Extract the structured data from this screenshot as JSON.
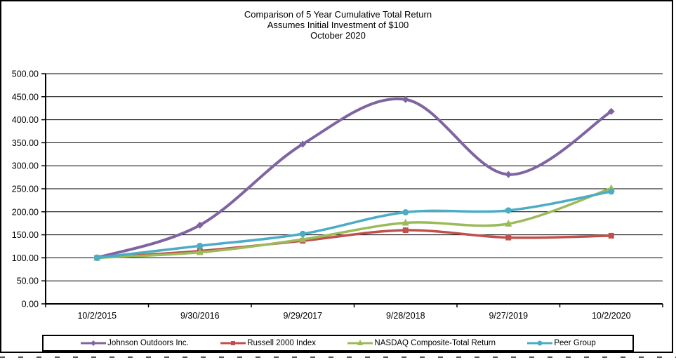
{
  "chart": {
    "title_lines": {
      "line1": "Comparison of 5 Year Cumulative Total Return",
      "line2": "Assumes Initial Investment of $100",
      "line3": "October 2020"
    }
  },
  "chart_data": {
    "type": "line",
    "title": "Comparison of 5 Year Cumulative Total Return",
    "subtitle": "Assumes Initial Investment of $100",
    "period_label": "October 2020",
    "categories": [
      "10/2/2015",
      "9/30/2016",
      "9/29/2017",
      "9/28/2018",
      "9/27/2019",
      "10/2/2020"
    ],
    "series": [
      {
        "name": "Johnson Outdoors Inc.",
        "color": "#8064A2",
        "marker": "diamond",
        "values": [
          100,
          171,
          347,
          444,
          281,
          418
        ]
      },
      {
        "name": "Russell 2000 Index",
        "color": "#C0504D",
        "marker": "square",
        "values": [
          100,
          115,
          137,
          160,
          144,
          148
        ]
      },
      {
        "name": "NASDAQ Composite-Total Return",
        "color": "#9BBB59",
        "marker": "triangle",
        "values": [
          100,
          112,
          140,
          176,
          174,
          251
        ]
      },
      {
        "name": "Peer Group",
        "color": "#4BACC6",
        "marker": "circle",
        "values": [
          100,
          126,
          152,
          199,
          203,
          244
        ]
      }
    ],
    "ylim": [
      0,
      500
    ],
    "ytick_step": 50,
    "ytick_labels": [
      "0.00",
      "50.00",
      "100.00",
      "150.00",
      "200.00",
      "250.00",
      "300.00",
      "350.00",
      "400.00",
      "450.00",
      "500.00"
    ],
    "grid": true,
    "gridline_color": "#000000",
    "axis_color": "#000000",
    "legend_position": "bottom",
    "smoothed_lines": true
  }
}
